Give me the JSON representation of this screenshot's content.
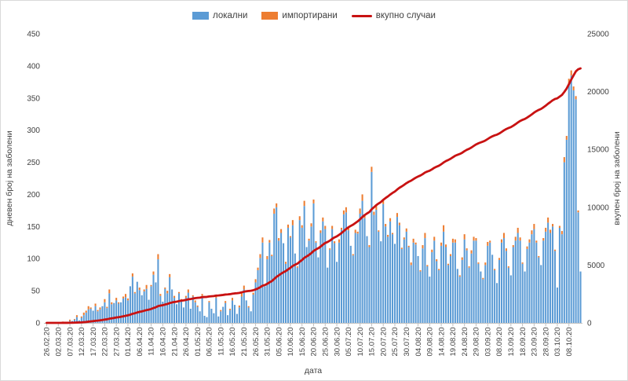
{
  "page": {
    "background": "#ffffff",
    "border_color": "#d9d9d9"
  },
  "legend": {
    "items": [
      {
        "label": "локални",
        "color": "#5b9bd5",
        "marker": "box"
      },
      {
        "label": "импортирани",
        "color": "#ed7d31",
        "marker": "box"
      },
      {
        "label": "вкупно случаи",
        "color": "#c81212",
        "marker": "line"
      }
    ]
  },
  "chart_data": {
    "type": "bar",
    "combo": "stacked-bars-plus-cumulative-line",
    "title": "",
    "xlabel": "дата",
    "ylabel_left": "дневен број на заболени",
    "ylabel_right": "вкупен број на заболени",
    "y_left_range": [
      0,
      450
    ],
    "y_left_ticks": [
      0,
      50,
      100,
      150,
      200,
      250,
      300,
      350,
      400,
      450
    ],
    "y_right_range": [
      0,
      25000
    ],
    "y_right_ticks": [
      0,
      5000,
      10000,
      15000,
      20000,
      25000
    ],
    "grid": false,
    "legend_position": "top",
    "x_start_date": "26.02.20",
    "x_tick_every": 5,
    "x_tick_labels": [
      "26.02.20",
      "02.03.20",
      "07.03.20",
      "12.03.20",
      "17.03.20",
      "22.03.20",
      "27.03.20",
      "01.04.20",
      "06.04.20",
      "11.04.20",
      "16.04.20",
      "21.04.20",
      "26.04.20",
      "01.05.20",
      "06.05.20",
      "11.05.20",
      "16.05.20",
      "21.05.20",
      "26.05.20",
      "31.05.20",
      "05.06.20",
      "10.06.20",
      "15.06.20",
      "20.06.20",
      "25.06.20",
      "30.06.20",
      "05.07.20",
      "10.07.20",
      "15.07.20",
      "20.07.20",
      "25.07.20",
      "30.07.20",
      "04.08.20",
      "09.08.20",
      "14.08.20",
      "19.08.20",
      "24.08.20",
      "29.08.20",
      "03.09.20",
      "08.09.20",
      "13.09.20",
      "18.09.20",
      "23.09.20",
      "28.09.20",
      "03.10.20",
      "08.10.20"
    ],
    "n_days": 231,
    "series": [
      {
        "name": "локални",
        "type": "bar",
        "axis": "left",
        "color": "#5b9bd5",
        "values": [
          1,
          0,
          0,
          0,
          0,
          0,
          0,
          1,
          1,
          0,
          3,
          3,
          5,
          9,
          4,
          8,
          12,
          16,
          21,
          22,
          19,
          26,
          18,
          21,
          26,
          32,
          23,
          46,
          29,
          31,
          35,
          30,
          32,
          38,
          40,
          35,
          57,
          72,
          46,
          64,
          51,
          43,
          49,
          53,
          36,
          57,
          75,
          63,
          99,
          42,
          33,
          53,
          46,
          71,
          52,
          39,
          29,
          46,
          33,
          24,
          39,
          47,
          22,
          41,
          32,
          25,
          18,
          42,
          11,
          9,
          32,
          22,
          15,
          39,
          10,
          18,
          25,
          31,
          12,
          20,
          35,
          28,
          14,
          24,
          41,
          52,
          35,
          24,
          18,
          44,
          63,
          82,
          101,
          125,
          57,
          99,
          125,
          104,
          170,
          180,
          128,
          140,
          124,
          92,
          148,
          133,
          152,
          108,
          86,
          160,
          148,
          182,
          118,
          128,
          150,
          186,
          125,
          102,
          140,
          158,
          146,
          86,
          114,
          146,
          124,
          95,
          125,
          145,
          169,
          172,
          144,
          120,
          105,
          140,
          139,
          170,
          190,
          163,
          135,
          118,
          235,
          168,
          176,
          142,
          127,
          185,
          150,
          134,
          158,
          138,
          123,
          165,
          152,
          115,
          130,
          142,
          118,
          90,
          125,
          122,
          104,
          80,
          116,
          132,
          88,
          72,
          110,
          128,
          96,
          82,
          120,
          142,
          118,
          90,
          104,
          125,
          125,
          84,
          72,
          98,
          130,
          113,
          86,
          108,
          128,
          128,
          92,
          80,
          68,
          90,
          120,
          125,
          106,
          82,
          62,
          98,
          125,
          132,
          112,
          86,
          74,
          118,
          128,
          140,
          128,
          92,
          80,
          115,
          125,
          138,
          146,
          125,
          102,
          90,
          128,
          142,
          156,
          140,
          150,
          112,
          55,
          148,
          138,
          250,
          285,
          372,
          385,
          362,
          348,
          172,
          80
        ]
      },
      {
        "name": "импортирани",
        "type": "bar",
        "axis": "left",
        "color": "#ed7d31",
        "values": [
          0,
          0,
          0,
          0,
          0,
          0,
          0,
          1,
          0,
          0,
          2,
          0,
          1,
          3,
          0,
          2,
          4,
          3,
          5,
          2,
          0,
          4,
          2,
          3,
          0,
          5,
          2,
          6,
          3,
          0,
          4,
          2,
          0,
          3,
          5,
          3,
          0,
          5,
          2,
          0,
          4,
          0,
          3,
          6,
          0,
          2,
          5,
          0,
          8,
          3,
          0,
          2,
          4,
          5,
          0,
          3,
          0,
          2,
          4,
          0,
          3,
          5,
          0,
          2,
          3,
          2,
          0,
          3,
          0,
          0,
          2,
          0,
          0,
          4,
          0,
          2,
          0,
          3,
          0,
          2,
          4,
          0,
          0,
          3,
          5,
          6,
          0,
          2,
          0,
          3,
          5,
          4,
          6,
          8,
          0,
          5,
          4,
          2,
          8,
          6,
          4,
          6,
          0,
          3,
          5,
          2,
          8,
          0,
          2,
          6,
          4,
          8,
          0,
          3,
          5,
          6,
          2,
          0,
          4,
          6,
          5,
          0,
          2,
          5,
          3,
          0,
          5,
          3,
          6,
          8,
          4,
          0,
          2,
          5,
          3,
          8,
          10,
          4,
          0,
          3,
          8,
          5,
          8,
          2,
          0,
          6,
          4,
          3,
          5,
          2,
          0,
          6,
          4,
          2,
          3,
          5,
          2,
          4,
          6,
          3,
          0,
          2,
          5,
          8,
          2,
          0,
          4,
          6,
          3,
          2,
          5,
          10,
          4,
          2,
          3,
          6,
          5,
          0,
          2,
          4,
          8,
          3,
          2,
          5,
          6,
          4,
          2,
          0,
          2,
          4,
          6,
          3,
          0,
          2,
          0,
          3,
          5,
          8,
          4,
          2,
          0,
          3,
          6,
          8,
          5,
          2,
          0,
          4,
          5,
          6,
          8,
          3,
          2,
          0,
          4,
          6,
          8,
          5,
          4,
          2,
          0,
          3,
          5,
          8,
          6,
          8,
          8,
          6,
          5,
          3,
          0
        ]
      },
      {
        "name": "вкупно случаи",
        "type": "line",
        "axis": "right",
        "color": "#c81212",
        "derived": "cumulative_sum_of_local_plus_imported"
      }
    ],
    "axis_line_color": "#bfbfbf"
  }
}
